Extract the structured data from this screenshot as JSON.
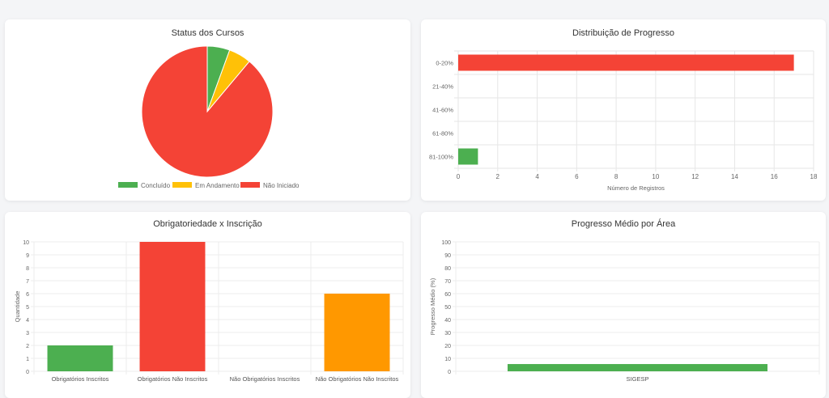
{
  "colors": {
    "green": "#4caf50",
    "yellow": "#ffc107",
    "red": "#f44336",
    "orange": "#ff9800"
  },
  "chart_data": [
    {
      "type": "pie",
      "title": "Status dos Cursos",
      "categories": [
        "Concluído",
        "Em Andamento",
        "Não Iniciado"
      ],
      "values": [
        1,
        1,
        16
      ],
      "colors": [
        "#4caf50",
        "#ffc107",
        "#f44336"
      ],
      "legend": "bottom"
    },
    {
      "type": "bar",
      "orientation": "horizontal",
      "title": "Distribuição de Progresso",
      "categories": [
        "0-20%",
        "21-40%",
        "41-60%",
        "61-80%",
        "81-100%"
      ],
      "values": [
        17,
        0,
        0,
        0,
        1
      ],
      "colors": [
        "#f44336",
        "#ff9800",
        "#ffc107",
        "#8bc34a",
        "#4caf50"
      ],
      "xlabel": "Número de Registros",
      "xlim": [
        0,
        18
      ],
      "xticks": [
        "0",
        "2",
        "4",
        "6",
        "8",
        "10",
        "12",
        "14",
        "16",
        "18"
      ],
      "grid": true
    },
    {
      "type": "bar",
      "title": "Obrigatoriedade x Inscrição",
      "categories": [
        "Obrigatórios Inscritos",
        "Obrigatórios Não Inscritos",
        "Não Obrigatórios Inscritos",
        "Não Obrigatórios Não Inscritos"
      ],
      "values": [
        2,
        10,
        0,
        6
      ],
      "colors": [
        "#4caf50",
        "#f44336",
        "#2196f3",
        "#ff9800"
      ],
      "ylabel": "Quantidade",
      "ylim": [
        0,
        10
      ],
      "yticks": [
        "0",
        "1",
        "2",
        "3",
        "4",
        "5",
        "6",
        "7",
        "8",
        "9",
        "10"
      ],
      "grid": true
    },
    {
      "type": "bar",
      "title": "Progresso Médio por Área",
      "categories": [
        "SIGESP"
      ],
      "values": [
        5.6
      ],
      "colors": [
        "#4caf50"
      ],
      "ylabel": "Progresso Médio (%)",
      "ylim": [
        0,
        100
      ],
      "yticks": [
        "0",
        "10",
        "20",
        "30",
        "40",
        "50",
        "60",
        "70",
        "80",
        "90",
        "100"
      ],
      "grid": true
    }
  ]
}
